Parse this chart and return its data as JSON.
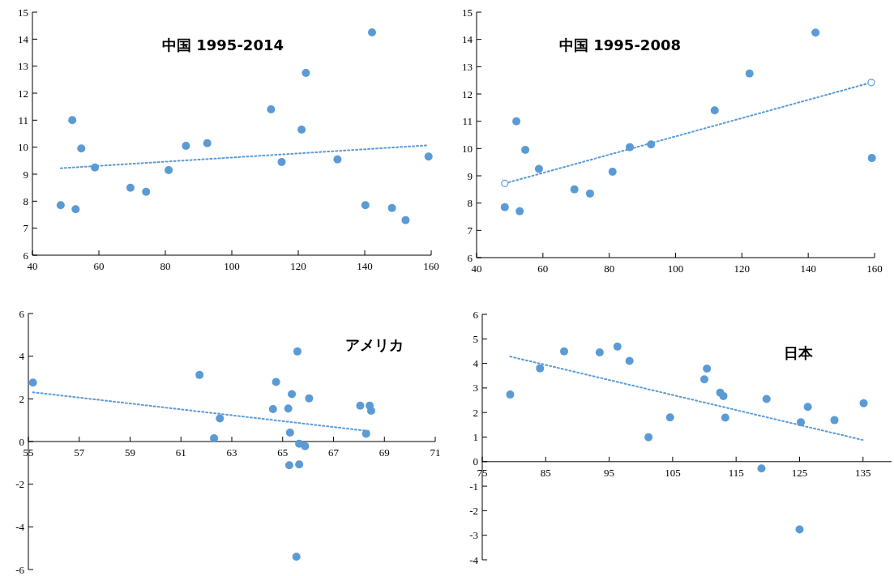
{
  "chart_data": [
    {
      "type": "scatter",
      "title": "中国  1995-2014",
      "xlim": [
        40,
        160
      ],
      "xticks": [
        40,
        60,
        80,
        100,
        120,
        140,
        160
      ],
      "ylim": [
        6,
        15
      ],
      "yticks": [
        6,
        7,
        8,
        9,
        10,
        11,
        12,
        13,
        14,
        15
      ],
      "grid": false,
      "series": [
        {
          "marker": "circle",
          "color": "#5b9bd5",
          "x": [
            48.5,
            52,
            53,
            54.7,
            58.8,
            69.5,
            74.2,
            81,
            86.2,
            92.6,
            111.8,
            115,
            121,
            122.3,
            131.8,
            140.2,
            142.2,
            148.2,
            152.3,
            159.2
          ],
          "values": [
            7.85,
            11,
            7.7,
            9.95,
            9.25,
            8.5,
            8.35,
            9.15,
            10.05,
            10.15,
            11.4,
            9.45,
            10.65,
            12.75,
            9.55,
            7.85,
            14.25,
            7.75,
            7.3,
            9.65
          ]
        },
        {
          "type": "line",
          "color": "#5b9bd5",
          "line_style": "dotted",
          "marker": "none",
          "x": [
            48.5,
            159
          ],
          "values": [
            9.22,
            10.07
          ]
        }
      ]
    },
    {
      "type": "scatter",
      "title": "中国  1995-2008",
      "xlim": [
        40,
        160
      ],
      "xticks": [
        40,
        60,
        80,
        100,
        120,
        140,
        160
      ],
      "ylim": [
        6,
        15
      ],
      "yticks": [
        6,
        7,
        8,
        9,
        10,
        11,
        12,
        13,
        14,
        15
      ],
      "grid": false,
      "series": [
        {
          "marker": "circle",
          "color": "#5b9bd5",
          "x": [
            48.5,
            52,
            53,
            54.7,
            58.8,
            69.5,
            74.2,
            81,
            86.2,
            92.6,
            111.8,
            122.3,
            142.2,
            159.2
          ],
          "values": [
            7.85,
            11,
            7.7,
            9.95,
            9.25,
            8.5,
            8.35,
            9.15,
            10.05,
            10.15,
            11.4,
            12.75,
            14.25,
            9.65
          ]
        },
        {
          "type": "line",
          "color": "#5b9bd5",
          "line_style": "dotted",
          "marker": "circle",
          "x": [
            48.5,
            159
          ],
          "values": [
            8.72,
            12.42
          ]
        }
      ]
    },
    {
      "type": "scatter",
      "title": "アメリカ",
      "xlim": [
        55,
        71
      ],
      "xticks": [
        55,
        57,
        59,
        61,
        63,
        65,
        67,
        69,
        71
      ],
      "ylim": [
        -6,
        6
      ],
      "yticks": [
        -6,
        -4,
        -2,
        0,
        2,
        4,
        6
      ],
      "grid": false,
      "series": [
        {
          "marker": "circle",
          "color": "#5b9bd5",
          "x": [
            55.18,
            61.73,
            62.53,
            62.3,
            64.62,
            64.74,
            65.22,
            65.36,
            65.29,
            65.58,
            65.65,
            65.88,
            65.26,
            65.65,
            65.54,
            66.04,
            68.05,
            68.42,
            68.48,
            68.28
          ],
          "values": [
            2.76,
            3.12,
            1.08,
            0.15,
            1.52,
            2.79,
            1.55,
            2.22,
            0.42,
            4.22,
            -0.1,
            -0.22,
            -1.11,
            -1.07,
            -5.4,
            2.02,
            1.68,
            1.68,
            1.44,
            0.36
          ]
        },
        {
          "type": "line",
          "color": "#5b9bd5",
          "line_style": "dotted",
          "marker": "none",
          "x": [
            55.18,
            68.45
          ],
          "values": [
            2.31,
            0.48
          ]
        }
      ]
    },
    {
      "type": "scatter",
      "title": "日本",
      "xlim": [
        75,
        139.5
      ],
      "xticks": [
        75,
        85,
        95,
        105,
        115,
        125,
        135
      ],
      "ylim": [
        -4,
        6
      ],
      "yticks": [
        -4,
        -3,
        -2,
        -1,
        0,
        1,
        2,
        3,
        4,
        5,
        6
      ],
      "grid": false,
      "series": [
        {
          "marker": "circle",
          "color": "#5b9bd5",
          "x": [
            79.4,
            84.1,
            87.9,
            93.5,
            96.3,
            98.2,
            101.2,
            104.6,
            110,
            110.4,
            112.5,
            113,
            113.3,
            119,
            119.8,
            125,
            125.2,
            126.3,
            130.5,
            135.1
          ],
          "values": [
            2.73,
            3.8,
            4.49,
            4.45,
            4.69,
            4.1,
            0.99,
            1.8,
            3.35,
            3.79,
            2.81,
            2.67,
            1.79,
            -0.28,
            2.55,
            -2.76,
            1.6,
            2.23,
            1.69,
            2.38
          ]
        },
        {
          "type": "line",
          "color": "#5b9bd5",
          "line_style": "dotted",
          "marker": "none",
          "x": [
            79.4,
            135.3
          ],
          "values": [
            4.28,
            0.86
          ]
        }
      ]
    }
  ]
}
